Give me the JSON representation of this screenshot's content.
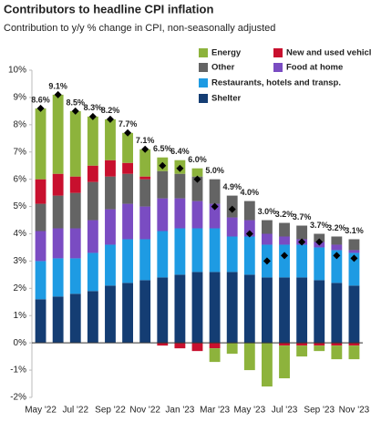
{
  "chart_data": {
    "type": "stacked_bar",
    "title": "Contributors to headline CPI inflation",
    "subtitle": "Contribution to y/y % change in CPI, non-seasonally adjusted",
    "categories": [
      "May '22",
      null,
      "Jul '22",
      null,
      "Sep '22",
      null,
      "Nov '22",
      null,
      "Jan '23",
      null,
      "Mar '23",
      null,
      "May '23",
      null,
      "Jul '23",
      null,
      "Sep '23",
      null,
      "Nov '23"
    ],
    "series": [
      {
        "name": "Shelter",
        "color": "#143d73",
        "values": [
          1.6,
          1.7,
          1.8,
          1.9,
          2.1,
          2.2,
          2.3,
          2.4,
          2.5,
          2.6,
          2.6,
          2.6,
          2.5,
          2.4,
          2.4,
          2.4,
          2.3,
          2.2,
          2.1
        ]
      },
      {
        "name": "Restaurants, hotels and transp.",
        "color": "#1e9be3",
        "values": [
          1.4,
          1.4,
          1.3,
          1.4,
          1.5,
          1.6,
          1.5,
          1.7,
          1.7,
          1.6,
          1.6,
          1.3,
          1.4,
          1.2,
          1.2,
          1.2,
          1.2,
          1.2,
          1.2
        ]
      },
      {
        "name": "Food at home",
        "color": "#7a4cc2",
        "values": [
          1.1,
          1.1,
          1.1,
          1.2,
          1.3,
          1.3,
          1.2,
          1.2,
          1.1,
          1.0,
          0.9,
          0.7,
          0.6,
          0.4,
          0.3,
          0.2,
          0.2,
          0.2,
          0.1
        ]
      },
      {
        "name": "Other",
        "color": "#646464",
        "values": [
          1.0,
          1.2,
          1.3,
          1.4,
          1.2,
          1.1,
          1.0,
          1.0,
          0.9,
          0.9,
          0.9,
          0.8,
          0.7,
          0.5,
          0.5,
          0.5,
          0.3,
          0.3,
          0.4
        ]
      },
      {
        "name": "New and used vehicles",
        "color": "#c8102e",
        "values": [
          0.9,
          0.8,
          0.6,
          0.6,
          0.6,
          0.4,
          0.1,
          -0.1,
          -0.2,
          -0.3,
          -0.2,
          0,
          0,
          0,
          -0.1,
          -0.1,
          -0.1,
          -0.1,
          -0.1
        ]
      },
      {
        "name": "Energy",
        "color": "#8db33c",
        "values": [
          2.6,
          2.9,
          2.4,
          1.8,
          1.5,
          1.1,
          1.0,
          0.5,
          0.5,
          0.3,
          -0.5,
          -0.4,
          -1.0,
          -1.6,
          -1.2,
          -0.4,
          -0.2,
          -0.5,
          -0.5
        ]
      }
    ],
    "headline": {
      "values": [
        8.6,
        9.1,
        8.5,
        8.3,
        8.2,
        7.7,
        7.1,
        6.5,
        6.4,
        6.0,
        5.0,
        4.9,
        4.0,
        3.0,
        3.2,
        3.7,
        3.7,
        3.2,
        3.1
      ],
      "value_labels": [
        "8.6%",
        "9.1%",
        "8.5%",
        "8.3%",
        "8.2%",
        "7.7%",
        "7.1%",
        "6.5%",
        "6.4%",
        "6.0%",
        "5.0%",
        "4.9%",
        "4.0%",
        "3.0%",
        "3.2%",
        "3.7%",
        "3.7%",
        "3.2%",
        "3.1%"
      ],
      "color": "#000000"
    },
    "ylim": [
      -2,
      10
    ],
    "yticks": [
      {
        "value": -2,
        "label": "-2%"
      },
      {
        "value": -1,
        "label": "-1%"
      },
      {
        "value": 0,
        "label": "0%"
      },
      {
        "value": 1,
        "label": "1%"
      },
      {
        "value": 2,
        "label": "2%"
      },
      {
        "value": 3,
        "label": "3%"
      },
      {
        "value": 4,
        "label": "4%"
      },
      {
        "value": 5,
        "label": "5%"
      },
      {
        "value": 6,
        "label": "6%"
      },
      {
        "value": 7,
        "label": "7%"
      },
      {
        "value": 8,
        "label": "8%"
      },
      {
        "value": 9,
        "label": "9%"
      },
      {
        "value": 10,
        "label": "10%"
      }
    ],
    "grid": false
  }
}
